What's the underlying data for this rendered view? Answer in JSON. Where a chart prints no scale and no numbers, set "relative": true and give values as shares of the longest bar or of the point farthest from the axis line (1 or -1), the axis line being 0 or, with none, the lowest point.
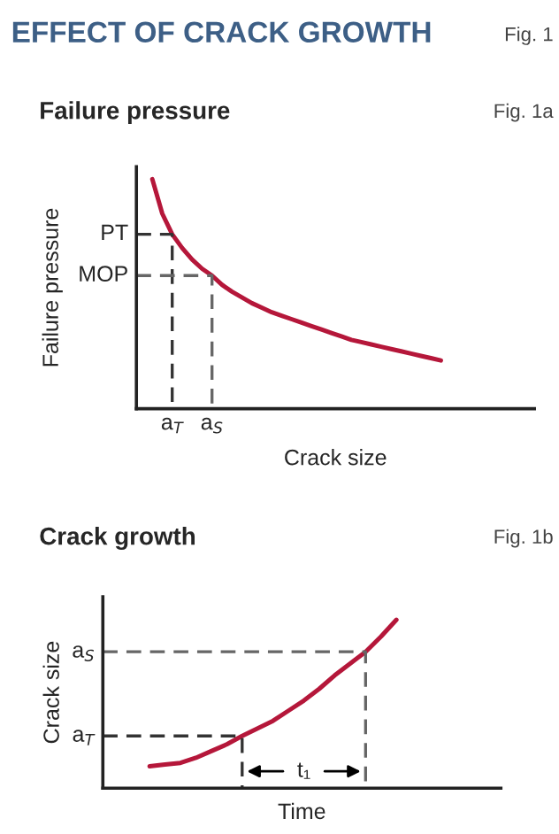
{
  "chart_data": [
    {
      "type": "line",
      "title": "EFFECT OF CRACK GROWTH",
      "subtitle": "Failure pressure",
      "xlabel": "Crack size",
      "ylabel": "Failure pressure",
      "relative": true,
      "annotations": [
        "Fig. 1",
        "Fig. 1a"
      ],
      "categories": [
        null,
        null,
        "a$_{T}$",
        null,
        null,
        null,
        "a$_{S}$",
        null,
        null,
        null,
        null,
        null,
        null,
        null,
        null,
        null,
        null,
        null,
        null,
        null,
        null,
        null,
        null,
        null,
        null,
        null,
        null,
        null,
        null,
        null
      ],
      "series": [
        {
          "color": "#b5173a",
          "values": [
            1.0,
            0.85,
            0.76,
            0.7,
            0.65,
            0.61,
            0.58,
            0.54,
            0.51,
            0.485,
            0.46,
            0.44,
            0.42,
            0.405,
            0.39,
            0.375,
            0.36,
            0.345,
            0.33,
            0.315,
            0.3,
            0.29,
            0.28,
            0.27,
            0.26,
            0.25,
            0.24,
            0.23,
            0.22,
            0.21
          ]
        }
      ],
      "ref_lines": [
        {
          "axis": "y",
          "value": 0.76,
          "label": "PT",
          "color": "#333333",
          "line_style": "dashed"
        },
        {
          "axis": "y",
          "value": 0.58,
          "label": "MOP",
          "color": "#666666",
          "line_style": "dashed"
        }
      ]
    },
    {
      "type": "line",
      "title": "Crack growth",
      "xlabel": "Time",
      "ylabel": "Crack size",
      "relative": true,
      "annotations": [
        "Fig. 1b",
        {
          "text": "t₁"
        }
      ],
      "categories": [
        null,
        null,
        null,
        null,
        null,
        null,
        null,
        null,
        null,
        null,
        null,
        null,
        null,
        null,
        null,
        null,
        null
      ],
      "series": [
        {
          "color": "#b5173a",
          "values": [
            0.13,
            0.14,
            0.15,
            0.18,
            0.22,
            0.26,
            0.31,
            0.355,
            0.4,
            0.46,
            0.52,
            0.59,
            0.67,
            0.74,
            0.81,
            0.9,
            1.0
          ]
        }
      ],
      "ref_lines": [
        {
          "axis": "y",
          "value": 0.81,
          "label": "a$_{S}$",
          "color": "#666666",
          "line_style": "dashed"
        },
        {
          "axis": "y",
          "value": 0.31,
          "label": "a$_{T}$",
          "color": "#333333",
          "line_style": "dashed"
        }
      ]
    }
  ]
}
